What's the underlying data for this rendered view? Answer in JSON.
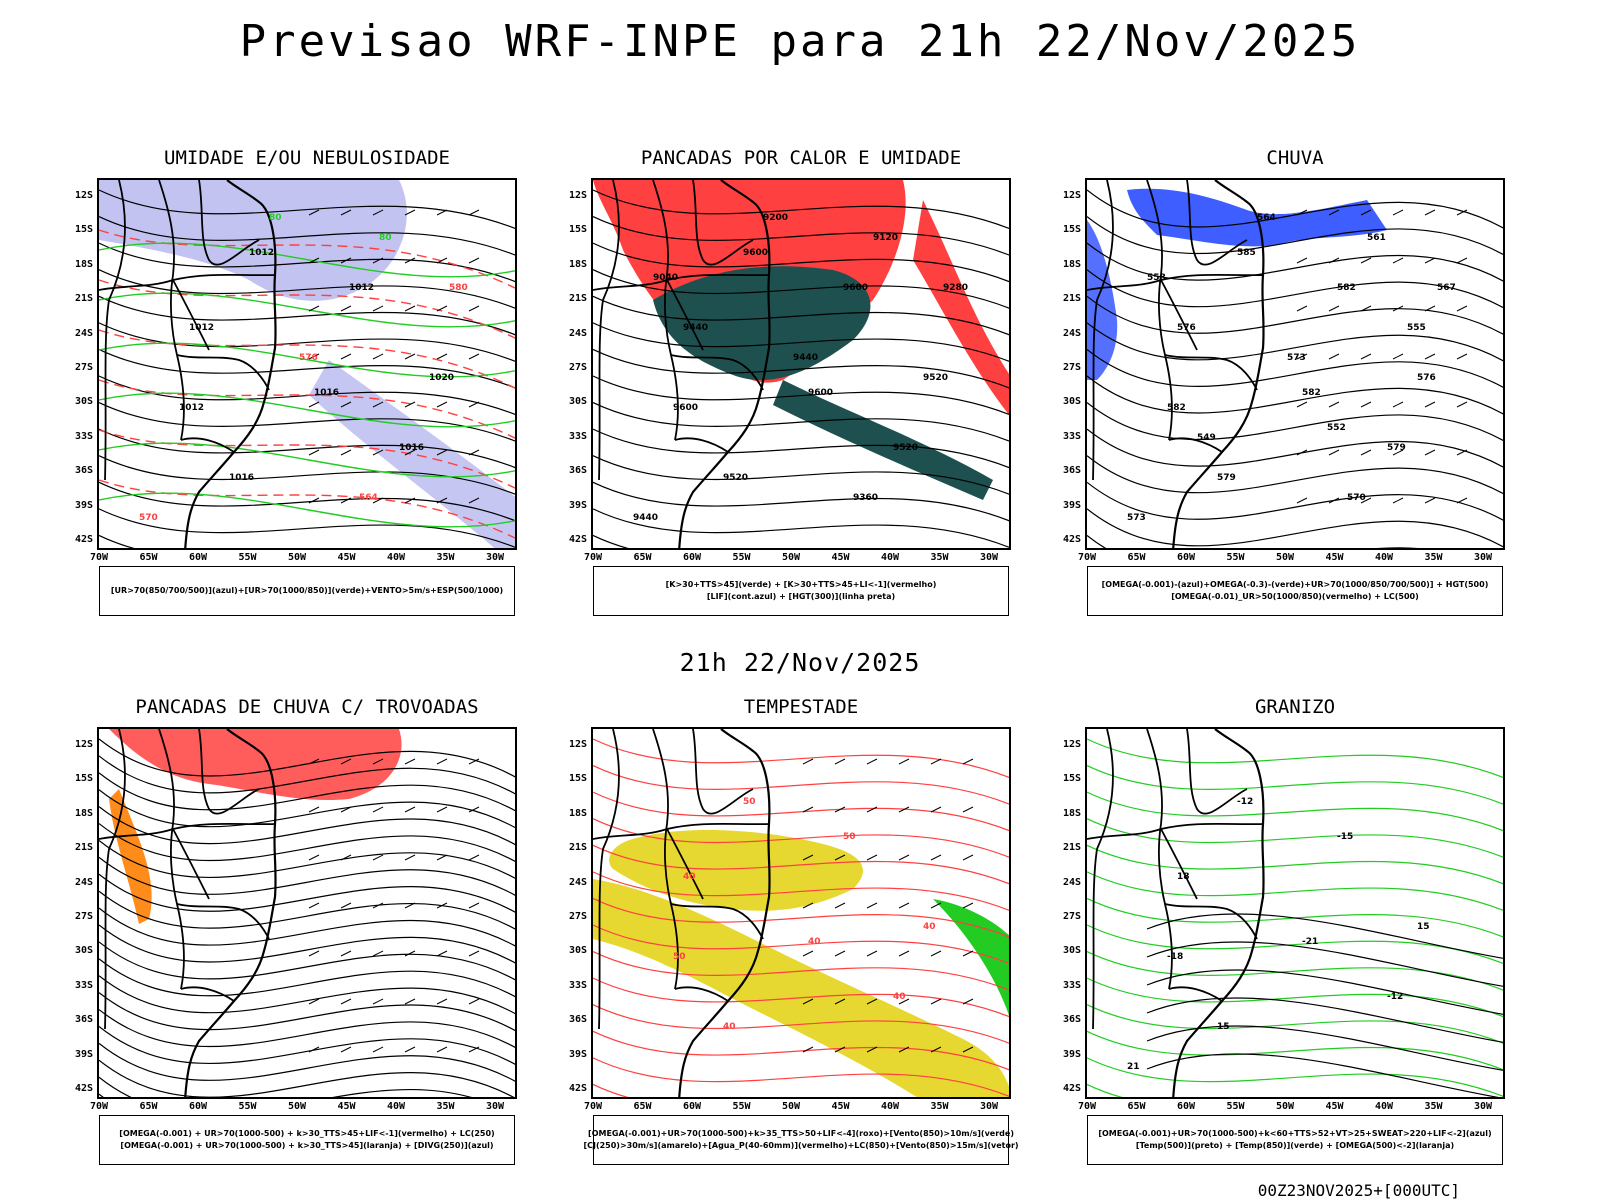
{
  "title": "Previsao WRF-INPE  para 21h 22/Nov/2025",
  "subtitle": "21h 22/Nov/2025",
  "footer": "00Z23NOV2025+[000UTC]",
  "axes": {
    "lat_labels": [
      "12S",
      "15S",
      "18S",
      "21S",
      "24S",
      "27S",
      "30S",
      "33S",
      "36S",
      "39S",
      "42S"
    ],
    "lon_labels": [
      "70W",
      "65W",
      "60W",
      "55W",
      "50W",
      "45W",
      "40W",
      "35W",
      "30W"
    ]
  },
  "colors": {
    "humid_blue": "#b8b8f0",
    "green": "#22cc22",
    "red": "#ff4040",
    "teal": "#1f5050",
    "blue": "#2a4cff",
    "orange": "#ff8c1a",
    "yellow": "#e6d830"
  },
  "panels": [
    {
      "title": "UMIDADE E/OU NEBULOSIDADE",
      "legend": [
        "[UR>70(850/700/500)](azul)+[UR>70(1000/850)](verde)+VENTO>5m/s+ESP(500/1000)"
      ],
      "contour_labels": [
        "1012",
        "1012",
        "1012",
        "1016",
        "1016",
        "1016",
        "1020",
        "1012",
        "570",
        "576",
        "564",
        "580",
        "80",
        "80"
      ]
    },
    {
      "title": "PANCADAS POR CALOR E UMIDADE",
      "legend": [
        "[K>30+TTS>45](verde) + [K>30+TTS>45+LI<-1](vermelho)",
        "[LIF](cont.azul) + [HGT(300)](linha preta)"
      ],
      "contour_labels": [
        "9600",
        "9600",
        "9600",
        "9600",
        "9520",
        "9520",
        "9520",
        "9440",
        "9440",
        "9440",
        "9360",
        "9280",
        "9200",
        "9120",
        "9040"
      ]
    },
    {
      "title": "CHUVA",
      "legend": [
        "[OMEGA(-0.001)-(azul)+OMEGA(-0.3)-(verde)+UR>70(1000/850/700/500)] + HGT(500)",
        "[OMEGA(-0.01)_UR>50(1000/850)(vermelho) + LC(500)"
      ],
      "contour_labels": [
        "585",
        "582",
        "582",
        "582",
        "579",
        "579",
        "576",
        "576",
        "573",
        "573",
        "570",
        "567",
        "564",
        "561",
        "558",
        "555",
        "552",
        "549"
      ]
    },
    {
      "title": "PANCADAS DE CHUVA C/ TROVOADAS",
      "legend": [
        "[OMEGA(-0.001) + UR>70(1000-500) + k>30_TTS>45+LIF<-1](vermelho) + LC(250)",
        "[OMEGA(-0.001) + UR>70(1000-500) + k>30_TTS>45](laranja) + [DIVG(250)](azul)"
      ],
      "contour_labels": []
    },
    {
      "title": "TEMPESTADE",
      "legend": [
        "[OMEGA(-0.001)+UR>70(1000-500)+k>35_TTS>50+LIF<-4](roxo)+[Vento(850)>10m/s](verde)",
        "[CJ(250)>30m/s](amarelo)+[Agua_P(40-60mm)](vermelho)+LC(850)+[Vento(850)>15m/s](vetor)"
      ],
      "contour_labels": [
        "50",
        "50",
        "50",
        "40",
        "40",
        "40",
        "40",
        "40"
      ]
    },
    {
      "title": "GRANIZO",
      "legend": [
        "[OMEGA(-0.001)+UR>70(1000-500)+k<60+TTS>52+VT>25+SWEAT>220+LIF<-2](azul)",
        "[Temp(500)](preto) + [Temp(850)](verde) + [OMEGA(500)<-2](laranja)"
      ],
      "contour_labels": [
        "-12",
        "-15",
        "-18",
        "-21",
        "-12",
        "15",
        "15",
        "18",
        "21"
      ]
    }
  ]
}
